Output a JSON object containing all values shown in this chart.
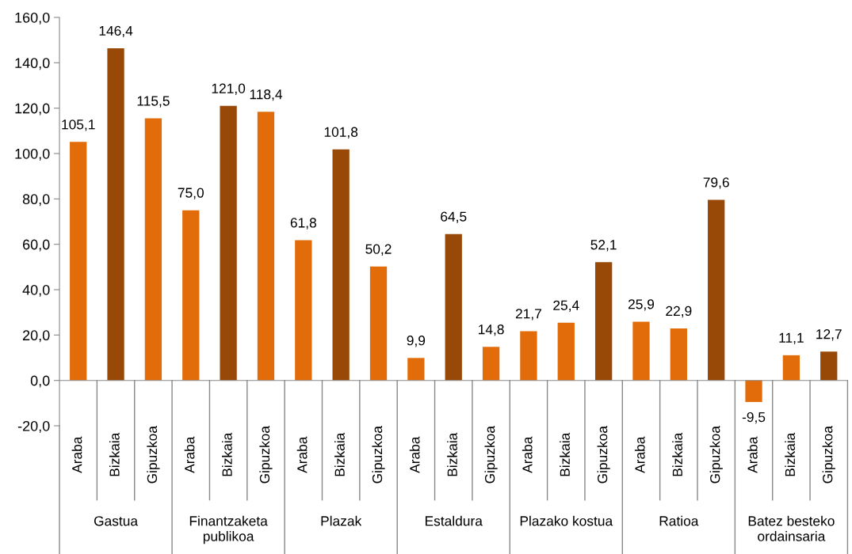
{
  "chart_data": {
    "type": "bar",
    "categories": [
      "Araba",
      "Bizkaia",
      "Gipuzkoa",
      "Araba",
      "Bizkaia",
      "Gipuzkoa",
      "Araba",
      "Bizkaia",
      "Gipuzkoa",
      "Araba",
      "Bizkaia",
      "Gipuzkoa",
      "Araba",
      "Bizkaia",
      "Gipuzkoa",
      "Araba",
      "Bizkaia",
      "Gipuzkoa",
      "Araba",
      "Bizkaia",
      "Gipuzkoa"
    ],
    "values": [
      105.1,
      146.4,
      115.5,
      75.0,
      121.0,
      118.4,
      61.8,
      101.8,
      50.2,
      9.9,
      64.5,
      14.8,
      21.7,
      25.4,
      52.1,
      25.9,
      22.9,
      79.6,
      -9.5,
      11.1,
      12.7
    ],
    "colors": [
      "#e36c0a",
      "#984807",
      "#e36c0a",
      "#e36c0a",
      "#984807",
      "#e36c0a",
      "#e36c0a",
      "#984807",
      "#e36c0a",
      "#e36c0a",
      "#984807",
      "#e36c0a",
      "#e36c0a",
      "#e36c0a",
      "#984807",
      "#e36c0a",
      "#e36c0a",
      "#984807",
      "#e36c0a",
      "#e36c0a",
      "#984807"
    ],
    "value_labels": [
      "105,1",
      "146,4",
      "115,5",
      "75,0",
      "121,0",
      "118,4",
      "61,8",
      "101,8",
      "50,2",
      "9,9",
      "64,5",
      "14,8",
      "21,7",
      "25,4",
      "52,1",
      "25,9",
      "22,9",
      "79,6",
      "-9,5",
      "11,1",
      "12,7"
    ],
    "annotations": [
      "Gastua",
      "Finantzaketa\npublikoa",
      "Plazak",
      "Estaldura",
      "Plazako kostua",
      "Ratioa",
      "Batez besteko\nordainsaria"
    ],
    "ylim": [
      -20,
      160
    ],
    "yticks": [
      {
        "value": -20,
        "label": "-20,0"
      },
      {
        "value": 0,
        "label": "0,0"
      },
      {
        "value": 20,
        "label": "20,0"
      },
      {
        "value": 40,
        "label": "40,0"
      },
      {
        "value": 60,
        "label": "60,0"
      },
      {
        "value": 80,
        "label": "80,0"
      },
      {
        "value": 100,
        "label": "100,0"
      },
      {
        "value": 120,
        "label": "120,0"
      },
      {
        "value": 140,
        "label": "140,0"
      },
      {
        "value": 160,
        "label": "160,0"
      }
    ],
    "legend": false
  }
}
